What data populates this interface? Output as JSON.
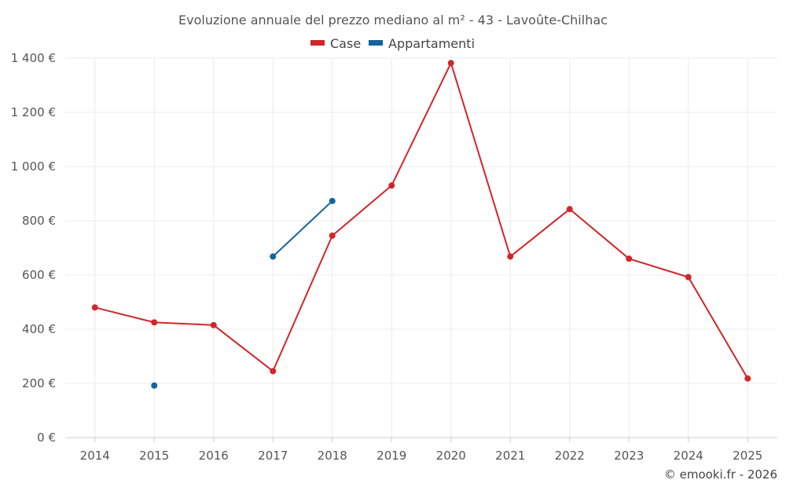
{
  "chart_data": {
    "type": "line",
    "title": "Evoluzione annuale del prezzo mediano al m² - 43 - Lavoûte-Chilhac",
    "xlabel": "",
    "ylabel": "",
    "categories": [
      "2014",
      "2015",
      "2016",
      "2017",
      "2018",
      "2019",
      "2020",
      "2021",
      "2022",
      "2023",
      "2024",
      "2025"
    ],
    "y_ticks": [
      0,
      200,
      400,
      600,
      800,
      1000,
      1200,
      1400
    ],
    "y_tick_labels": [
      "0 €",
      "200 €",
      "400 €",
      "600 €",
      "800 €",
      "1 000 €",
      "1 200 €",
      "1 400 €"
    ],
    "ylim": [
      0,
      1400
    ],
    "grid": true,
    "legend_position": "top-center",
    "series": [
      {
        "name": "Case",
        "color": "#d0262b",
        "values": [
          480,
          425,
          415,
          245,
          745,
          930,
          1382,
          668,
          843,
          660,
          592,
          218
        ]
      },
      {
        "name": "Appartamenti",
        "color": "#14649c",
        "values": [
          null,
          192,
          null,
          668,
          873,
          null,
          null,
          null,
          null,
          null,
          null,
          null
        ]
      }
    ]
  },
  "credit": "© emooki.fr - 2026"
}
